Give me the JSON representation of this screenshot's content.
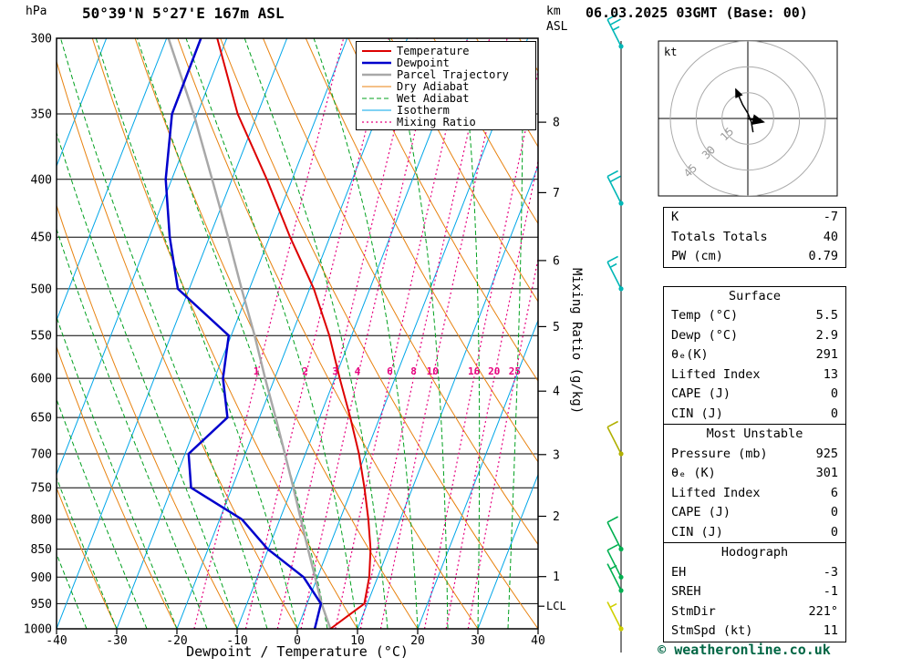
{
  "header": {
    "pressure_unit": "hPa",
    "title": "50°39'N 5°27'E 167m ASL",
    "datetime": "06.03.2025 03GMT (Base: 00)",
    "altitude_unit_line1": "km",
    "altitude_unit_line2": "ASL"
  },
  "axes": {
    "x_label": "Dewpoint / Temperature (°C)",
    "x_ticks": [
      -40,
      -30,
      -20,
      -10,
      0,
      10,
      20,
      30,
      40
    ],
    "pressure_ticks": [
      300,
      350,
      400,
      450,
      500,
      550,
      600,
      650,
      700,
      750,
      800,
      850,
      900,
      950,
      1000
    ],
    "km_ticks": [
      8,
      7,
      6,
      5,
      4,
      3,
      2,
      1
    ],
    "lcl_label": "LCL",
    "mixing_ratio_axis_label": "Mixing Ratio (g/kg)"
  },
  "legend": [
    {
      "label": "Temperature",
      "color": "#dd0000",
      "width": 2,
      "dash": ""
    },
    {
      "label": "Dewpoint",
      "color": "#0000cc",
      "width": 2.5,
      "dash": ""
    },
    {
      "label": "Parcel Trajectory",
      "color": "#a8a8a8",
      "width": 2.5,
      "dash": ""
    },
    {
      "label": "Dry Adiabat",
      "color": "#e8820f",
      "width": 1,
      "dash": ""
    },
    {
      "label": "Wet Adiabat",
      "color": "#00a01e",
      "width": 1,
      "dash": "5 3"
    },
    {
      "label": "Isotherm",
      "color": "#00a6e8",
      "width": 1,
      "dash": ""
    },
    {
      "label": "Mixing Ratio",
      "color": "#e6007e",
      "width": 1.2,
      "dash": "2 3"
    }
  ],
  "chart_data": {
    "type": "skewt_sounding",
    "pressure_range_hpa": [
      300,
      1000
    ],
    "temp_range_c": [
      -40,
      40
    ],
    "isotherms_c": {
      "start": -90,
      "end": 40,
      "step": 10
    },
    "dry_adiabats_theta_c": {
      "start": -40,
      "end": 120,
      "step": 10
    },
    "wet_adiabats_t1000_c": {
      "start": -40,
      "end": 60,
      "step": 5
    },
    "mixing_ratio_lines_gkg": [
      1,
      2,
      3,
      4,
      6,
      8,
      10,
      16,
      20,
      25
    ],
    "temperature_profile_p_t": [
      [
        1000,
        5.5
      ],
      [
        950,
        9.5
      ],
      [
        900,
        8.6
      ],
      [
        850,
        7.0
      ],
      [
        800,
        4.7
      ],
      [
        750,
        2.0
      ],
      [
        700,
        -1.1
      ],
      [
        650,
        -4.9
      ],
      [
        600,
        -9.2
      ],
      [
        550,
        -13.7
      ],
      [
        500,
        -19.3
      ],
      [
        450,
        -26.6
      ],
      [
        400,
        -34.2
      ],
      [
        350,
        -43.3
      ],
      [
        300,
        -51.6
      ]
    ],
    "dewpoint_profile_p_t": [
      [
        1000,
        2.9
      ],
      [
        950,
        2.3
      ],
      [
        900,
        -2.3
      ],
      [
        850,
        -10.1
      ],
      [
        800,
        -16.3
      ],
      [
        750,
        -26.8
      ],
      [
        700,
        -29.4
      ],
      [
        650,
        -25.3
      ],
      [
        600,
        -28.6
      ],
      [
        550,
        -30.4
      ],
      [
        500,
        -41.9
      ],
      [
        450,
        -46.6
      ],
      [
        400,
        -51.0
      ],
      [
        350,
        -54.2
      ],
      [
        300,
        -54.3
      ]
    ],
    "parcel_profile_p_t": [
      [
        1000,
        5.5
      ],
      [
        950,
        2.4
      ],
      [
        900,
        -0.4
      ],
      [
        850,
        -3.4
      ],
      [
        800,
        -6.5
      ],
      [
        750,
        -9.8
      ],
      [
        700,
        -13.4
      ],
      [
        650,
        -17.3
      ],
      [
        600,
        -21.6
      ],
      [
        550,
        -26.1
      ],
      [
        500,
        -31.3
      ],
      [
        450,
        -36.9
      ],
      [
        400,
        -43.3
      ],
      [
        350,
        -50.6
      ],
      [
        300,
        -59.7
      ]
    ],
    "lcl_pressure_hpa": 955,
    "km_pressures": {
      "1": 899,
      "2": 795,
      "3": 701,
      "4": 616,
      "5": 540,
      "6": 472,
      "7": 411,
      "8": 356
    }
  },
  "wind_barbs": [
    {
      "pressure": 305,
      "speed_kt": 25,
      "color": "#00b7b7"
    },
    {
      "pressure": 420,
      "speed_kt": 20,
      "color": "#00b7b7"
    },
    {
      "pressure": 500,
      "speed_kt": 15,
      "color": "#00b7b7"
    },
    {
      "pressure": 700,
      "speed_kt": 10,
      "color": "#b0b000"
    },
    {
      "pressure": 850,
      "speed_kt": 10,
      "color": "#00b050"
    },
    {
      "pressure": 900,
      "speed_kt": 10,
      "color": "#00b050"
    },
    {
      "pressure": 925,
      "speed_kt": 5,
      "color": "#00b050"
    },
    {
      "pressure": 1000,
      "speed_kt": 5,
      "color": "#d0d000"
    }
  ],
  "hodograph": {
    "unit_label": "kt",
    "rings_kt": [
      15,
      30,
      45
    ],
    "trace_uv_kt": [
      [
        3,
        -8
      ],
      [
        2,
        -2
      ],
      [
        0,
        3
      ],
      [
        -3,
        8
      ],
      [
        -7,
        17
      ]
    ],
    "storm_uv_kt": [
      9,
      -2
    ]
  },
  "stats_tables": [
    {
      "title": "",
      "rows": [
        [
          "K",
          "-7"
        ],
        [
          "Totals Totals",
          "40"
        ],
        [
          "PW (cm)",
          "0.79"
        ]
      ]
    },
    {
      "title": "Surface",
      "rows": [
        [
          "Temp (°C)",
          "5.5"
        ],
        [
          "Dewp (°C)",
          "2.9"
        ],
        [
          "θₑ(K)",
          "291"
        ],
        [
          "Lifted Index",
          "13"
        ],
        [
          "CAPE (J)",
          "0"
        ],
        [
          "CIN (J)",
          "0"
        ]
      ]
    },
    {
      "title": "Most Unstable",
      "rows": [
        [
          "Pressure (mb)",
          "925"
        ],
        [
          "θₑ (K)",
          "301"
        ],
        [
          "Lifted Index",
          "6"
        ],
        [
          "CAPE (J)",
          "0"
        ],
        [
          "CIN (J)",
          "0"
        ]
      ]
    },
    {
      "title": "Hodograph",
      "rows": [
        [
          "EH",
          "-3"
        ],
        [
          "SREH",
          "-1"
        ],
        [
          "StmDir",
          "221°"
        ],
        [
          "StmSpd (kt)",
          "11"
        ]
      ]
    }
  ],
  "footer": {
    "copyright": "© weatheronline.co.uk",
    "color": "#006644"
  }
}
